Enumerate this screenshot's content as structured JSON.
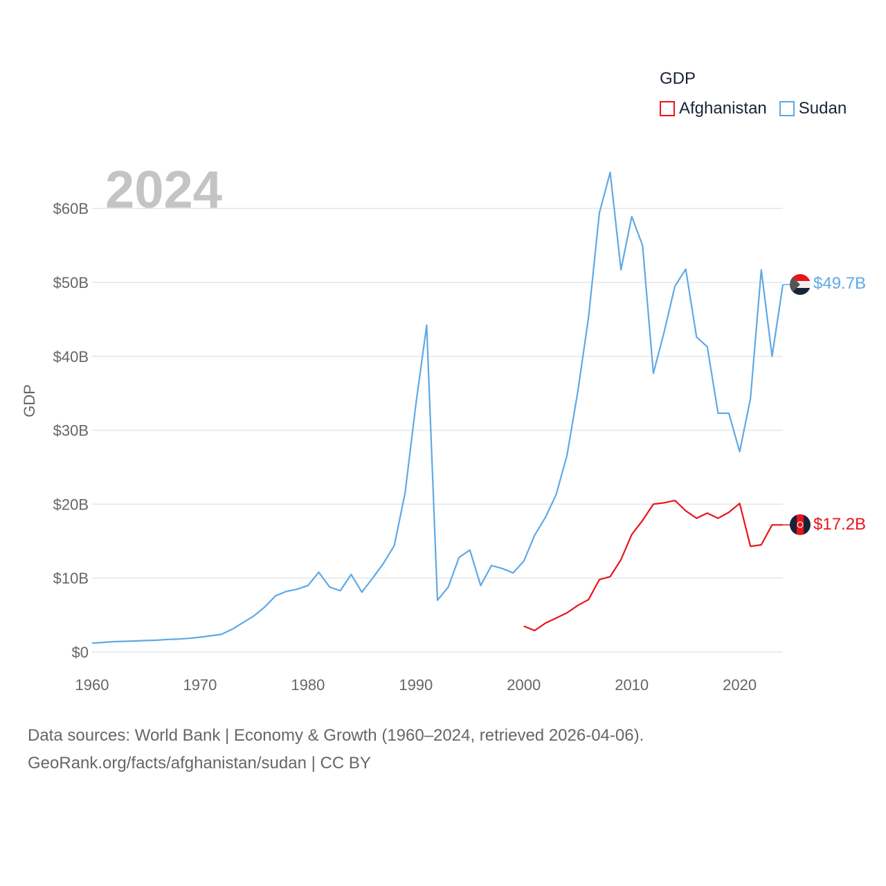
{
  "chart_data": {
    "type": "line",
    "title": "GDP",
    "big_year": "2024",
    "xlabel": "",
    "ylabel": "GDP",
    "xlim": [
      1960,
      2024
    ],
    "ylim": [
      0,
      65
    ],
    "x_ticks": [
      1960,
      1970,
      1980,
      1990,
      2000,
      2010,
      2020
    ],
    "y_ticks": [
      0,
      10,
      20,
      30,
      40,
      50,
      60
    ],
    "y_tick_labels": [
      "$0",
      "$10B",
      "$20B",
      "$30B",
      "$40B",
      "$50B",
      "$60B"
    ],
    "grid": true,
    "legend_position": "top-right",
    "series": [
      {
        "name": "Afghanistan",
        "color": "#e8141c",
        "end_label": "$17.2B",
        "flag": "afghanistan-flag",
        "x": [
          2000,
          2001,
          2002,
          2003,
          2004,
          2005,
          2006,
          2007,
          2008,
          2009,
          2010,
          2011,
          2012,
          2013,
          2014,
          2015,
          2016,
          2017,
          2018,
          2019,
          2020,
          2021,
          2022,
          2023,
          2024
        ],
        "values": [
          3.5,
          2.9,
          3.9,
          4.6,
          5.3,
          6.3,
          7.1,
          9.8,
          10.2,
          12.5,
          15.9,
          17.8,
          20.0,
          20.2,
          20.5,
          19.1,
          18.1,
          18.8,
          18.1,
          18.9,
          20.1,
          14.3,
          14.5,
          17.2,
          17.2
        ]
      },
      {
        "name": "Sudan",
        "color": "#5fa8e6",
        "end_label": "$49.7B",
        "flag": "sudan-flag",
        "x": [
          1960,
          1961,
          1962,
          1963,
          1964,
          1965,
          1966,
          1967,
          1968,
          1969,
          1970,
          1971,
          1972,
          1973,
          1974,
          1975,
          1976,
          1977,
          1978,
          1979,
          1980,
          1981,
          1982,
          1983,
          1984,
          1985,
          1986,
          1987,
          1988,
          1989,
          1990,
          1991,
          1992,
          1993,
          1994,
          1995,
          1996,
          1997,
          1998,
          1999,
          2000,
          2001,
          2002,
          2003,
          2004,
          2005,
          2006,
          2007,
          2008,
          2009,
          2010,
          2011,
          2012,
          2013,
          2014,
          2015,
          2016,
          2017,
          2018,
          2019,
          2020,
          2021,
          2022,
          2023,
          2024
        ],
        "values": [
          1.2,
          1.3,
          1.4,
          1.45,
          1.5,
          1.55,
          1.6,
          1.7,
          1.75,
          1.85,
          2.0,
          2.2,
          2.4,
          3.1,
          4.0,
          4.9,
          6.1,
          7.6,
          8.2,
          8.5,
          9.0,
          10.8,
          8.8,
          8.3,
          10.5,
          8.1,
          10.0,
          12.0,
          14.4,
          21.5,
          33.5,
          44.2,
          7.0,
          8.8,
          12.8,
          13.8,
          9.0,
          11.7,
          11.3,
          10.7,
          12.3,
          15.8,
          18.2,
          21.3,
          26.6,
          35.2,
          45.3,
          59.4,
          64.9,
          51.7,
          58.9,
          55.0,
          37.7,
          43.3,
          49.5,
          51.8,
          42.6,
          41.3,
          32.3,
          32.3,
          27.1,
          34.3,
          51.7,
          40.0,
          49.7
        ]
      }
    ]
  },
  "source": {
    "line1": "Data sources: World Bank | Economy & Growth (1960–2024, retrieved 2026-04-06).",
    "line2": "GeoRank.org/facts/afghanistan/sudan | CC BY"
  }
}
